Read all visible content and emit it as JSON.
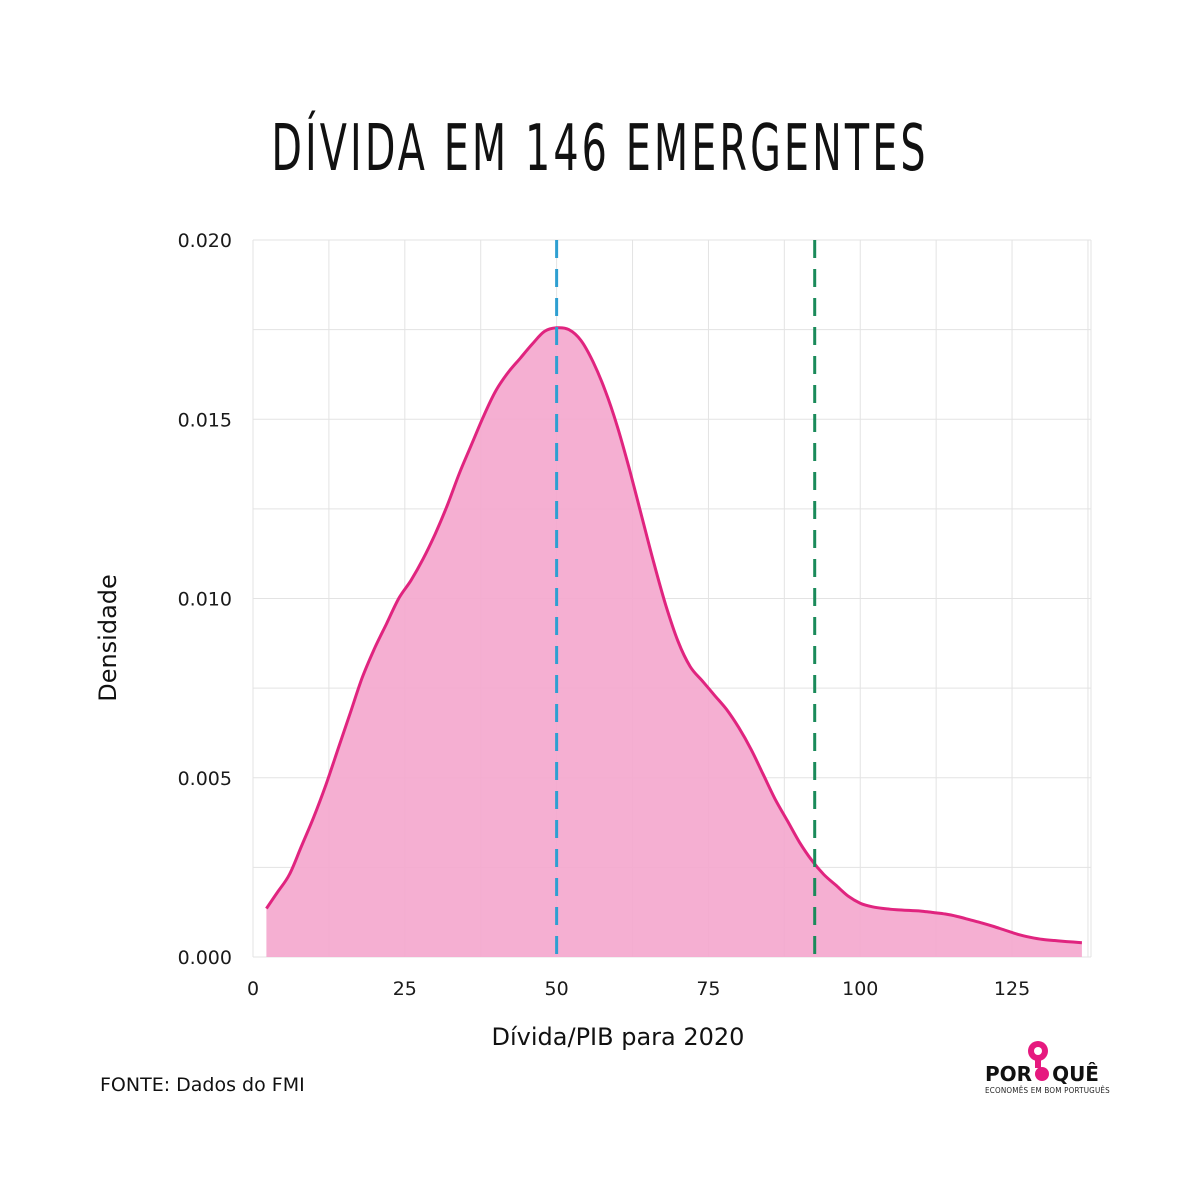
{
  "title": "DÍVIDA EM 146 EMERGENTES",
  "source": "FONTE: Dados do FMI",
  "logo": {
    "word_left": "POR",
    "word_right": "QUÊ",
    "tagline": "ECONOMÊS EM BOM PORTUGUÊS",
    "accent_color": "#e6197f"
  },
  "chart_data": {
    "type": "area",
    "title": "DÍVIDA EM 146 EMERGENTES",
    "xlabel": "Dívida/PIB para 2020",
    "ylabel": "Densidade",
    "xlim": [
      0,
      138
    ],
    "ylim": [
      0,
      0.02
    ],
    "x_ticks": [
      "0",
      "25",
      "50",
      "75",
      "100",
      "125"
    ],
    "x_tick_values": [
      0,
      25,
      50,
      75,
      100,
      125
    ],
    "y_ticks": [
      "0.000",
      "0.005",
      "0.010",
      "0.015",
      "0.020"
    ],
    "y_tick_values": [
      0,
      0.005,
      0.01,
      0.015,
      0.02
    ],
    "grid": true,
    "fill_color": "#f4a6cd",
    "line_color": "#e0247f",
    "series": [
      {
        "x": [
          2.2,
          4,
          6,
          8,
          10,
          12,
          14,
          16,
          18,
          20,
          22,
          24,
          26,
          28,
          30,
          32,
          34,
          36,
          38,
          40,
          42,
          44,
          46,
          48,
          50,
          52,
          54,
          56,
          58,
          60,
          62,
          64,
          66,
          68,
          70,
          72,
          74,
          76,
          78,
          80,
          82,
          84,
          86,
          88,
          90,
          92,
          94,
          96,
          98,
          100,
          102,
          104,
          106,
          108,
          110,
          112,
          114,
          116,
          118,
          120,
          122,
          124,
          126,
          128,
          130,
          132,
          134,
          136.5
        ],
        "y": [
          0.00135,
          0.0018,
          0.0023,
          0.0031,
          0.0039,
          0.0048,
          0.0058,
          0.0068,
          0.0078,
          0.0086,
          0.0093,
          0.01,
          0.0105,
          0.0111,
          0.0118,
          0.0126,
          0.0135,
          0.0143,
          0.0151,
          0.0158,
          0.0163,
          0.0167,
          0.0171,
          0.01745,
          0.01755,
          0.0175,
          0.0172,
          0.0166,
          0.0158,
          0.0148,
          0.0136,
          0.0123,
          0.011,
          0.0098,
          0.0088,
          0.0081,
          0.0077,
          0.0073,
          0.0069,
          0.0064,
          0.0058,
          0.0051,
          0.0044,
          0.0038,
          0.0032,
          0.0027,
          0.0023,
          0.002,
          0.0017,
          0.0015,
          0.0014,
          0.00135,
          0.00132,
          0.0013,
          0.00128,
          0.00124,
          0.0012,
          0.00113,
          0.00104,
          0.00095,
          0.00085,
          0.00074,
          0.00063,
          0.00055,
          0.00049,
          0.00046,
          0.00043,
          0.0004
        ]
      }
    ],
    "reference_lines": [
      {
        "x": 50,
        "color": "#2e9fd1"
      },
      {
        "x": 92.5,
        "color": "#1a8a5a"
      }
    ]
  }
}
